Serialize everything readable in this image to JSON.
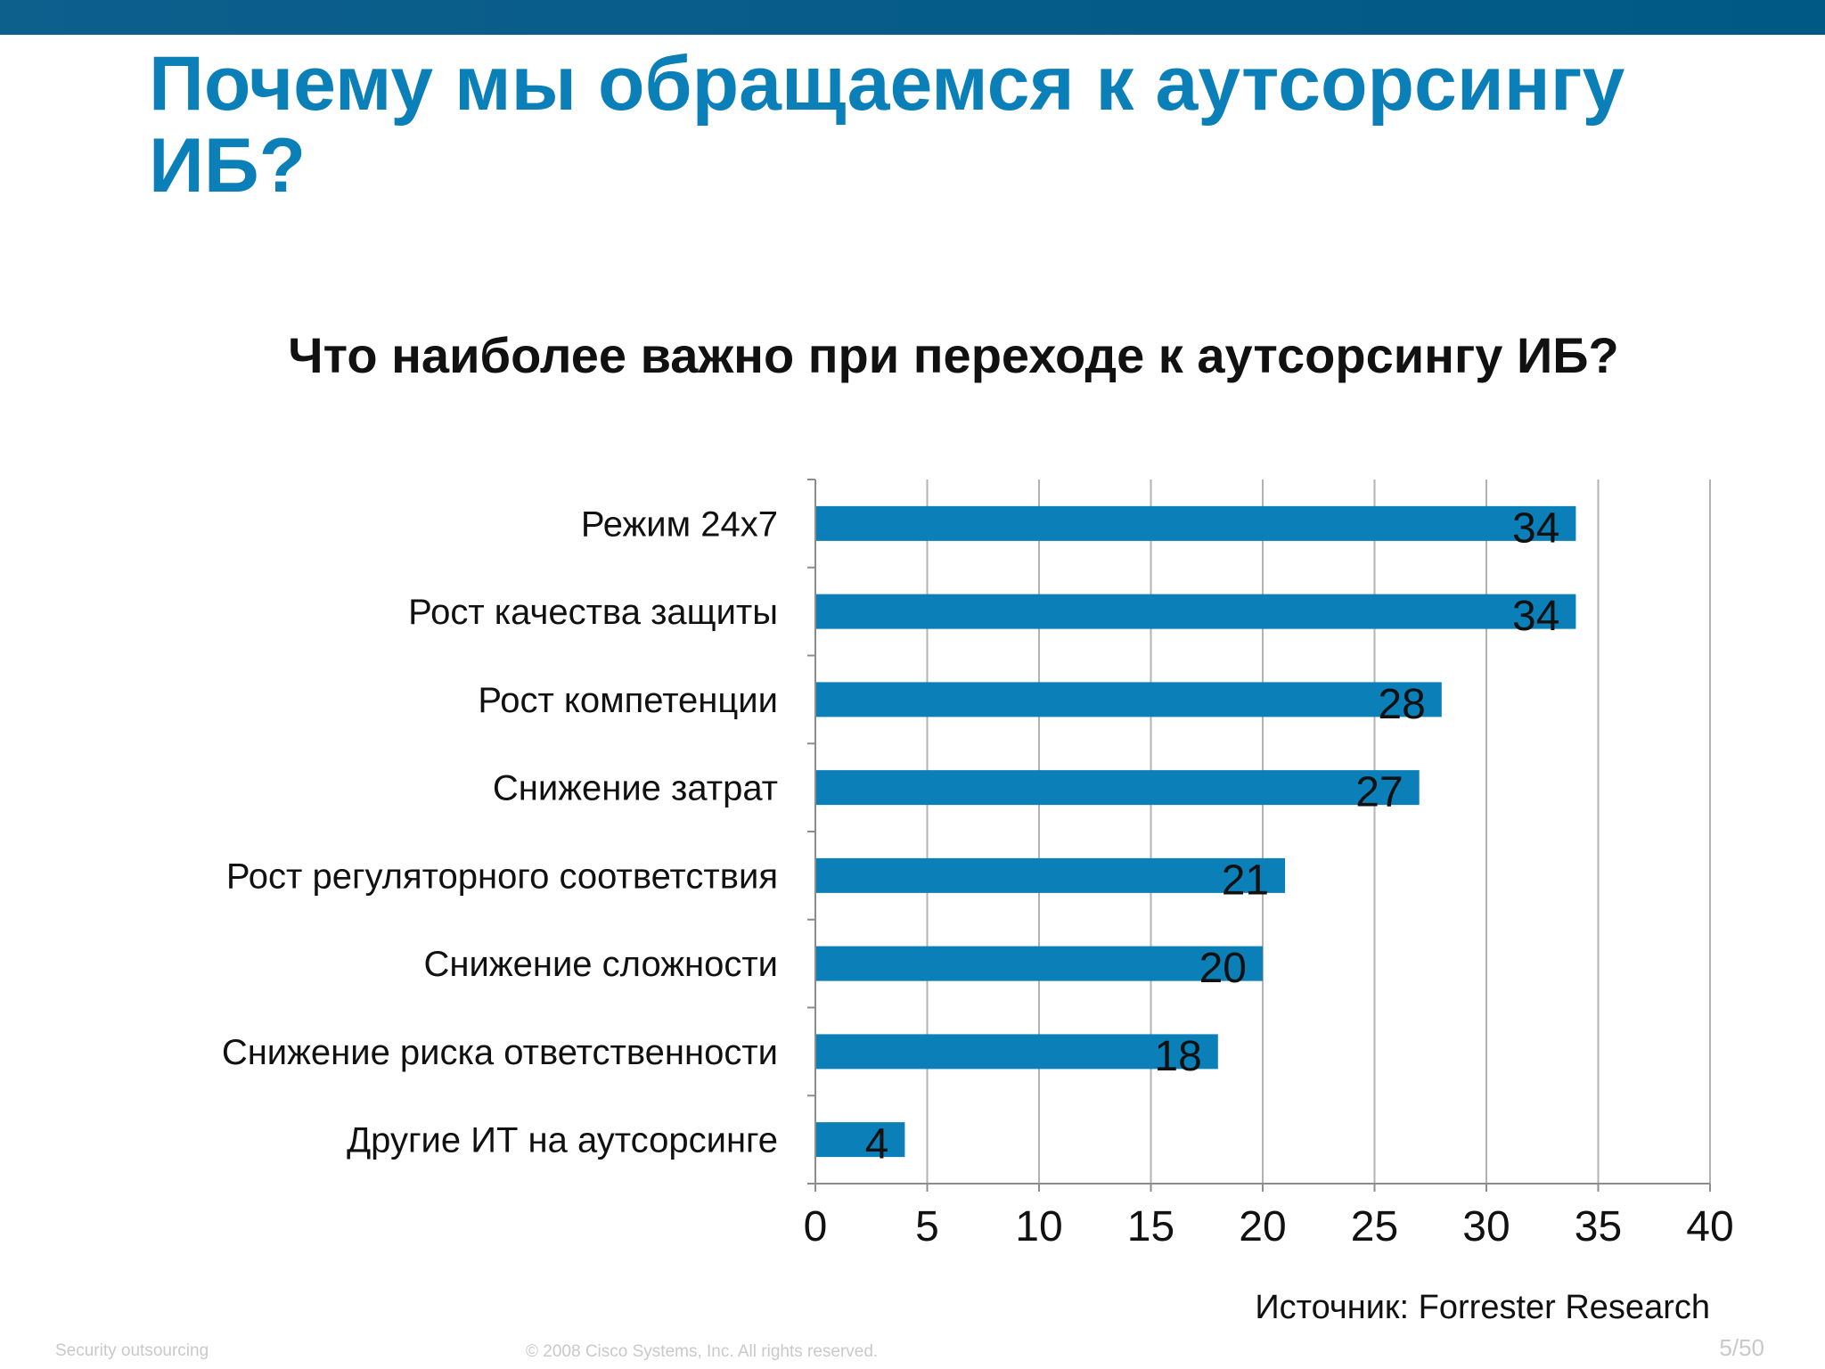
{
  "slide": {
    "title": "Почему мы обращаемся к аутсорсингу ИБ?",
    "source": "Источник: Forrester Research",
    "footer_left": "Security outsourcing",
    "footer_center": "© 2008 Cisco Systems, Inc. All rights reserved.",
    "page_number": "5/50"
  },
  "colors": {
    "header_bar": "#005985",
    "title": "#0a7fb8",
    "bar": "#0a7fb8",
    "grid": "#b3b3b3"
  },
  "chart_data": {
    "type": "bar",
    "orientation": "horizontal",
    "title": "Что наиболее важно при переходе к аутсорсингу ИБ?",
    "categories": [
      "Режим 24x7",
      "Рост качества защиты",
      "Рост компетенции",
      "Снижение затрат",
      "Рост регуляторного соответствия",
      "Снижение сложности",
      "Снижение риска ответственности",
      "Другие ИТ на аутсорсинге"
    ],
    "values": [
      34,
      34,
      28,
      27,
      21,
      20,
      18,
      4
    ],
    "xlim": [
      0,
      40
    ],
    "xticks": [
      0,
      5,
      10,
      15,
      20,
      25,
      30,
      35,
      40
    ],
    "grid": true,
    "data_labels": true,
    "legend": "none"
  }
}
